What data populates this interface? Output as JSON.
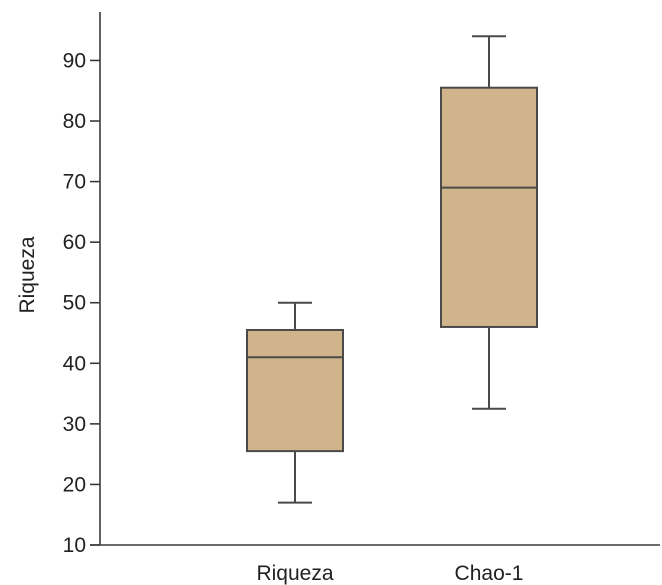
{
  "chart_data": {
    "type": "boxplot",
    "title": "",
    "xlabel": "",
    "ylabel": "Riqueza",
    "ylim": [
      10,
      98
    ],
    "yticks": [
      10,
      20,
      30,
      40,
      50,
      60,
      70,
      80,
      90
    ],
    "grid": false,
    "legend": "none",
    "box_color": "#d2b48c",
    "line_color": "#4a4a4a",
    "categories": [
      "Riqueza",
      "Chao-1"
    ],
    "boxes": [
      {
        "category": "Riqueza",
        "min": 17,
        "q1": 25.5,
        "median": 41,
        "q3": 45.5,
        "max": 50
      },
      {
        "category": "Chao-1",
        "min": 32.5,
        "q1": 46,
        "median": 69,
        "q3": 85.5,
        "max": 94
      }
    ]
  }
}
